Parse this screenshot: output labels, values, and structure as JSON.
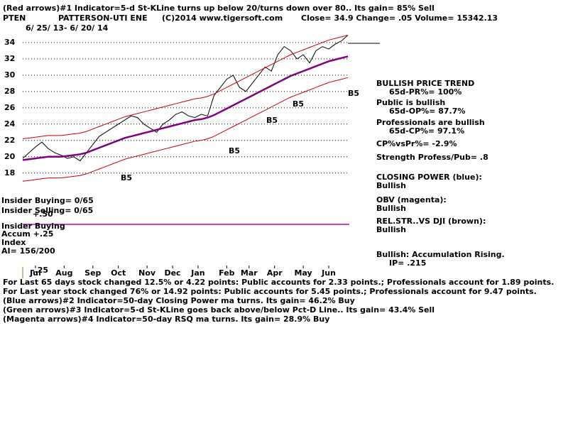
{
  "chart_data": {
    "type": "line",
    "annotations": [
      "(Red arrows)#1 Indicator=5-d St-KLine turns up below 20/turns down over 80.. Its gain= 85% Sell",
      "PTEN",
      "PATTERSON-UTI ENE",
      "(C)2014 www.tigersoft.com",
      "Close=  34.9  Change= .05 Volume= 15342.13",
      "6/ 25/ 13-  6/ 20/ 14",
      "BULLISH PRICE TREND",
      "65d-PR%= 100%",
      "Public is bullish",
      "65d-OP%= 87.7%",
      "Professionals are bullish",
      "65d-CP%= 97.1%",
      "CP%vsPr%= -2.9%",
      "Strength Profess/Pub= .8",
      "CLOSING POWER (blue):",
      "Bullish",
      "OBV (magenta):",
      "Bullish",
      "REL.STR..VS DJI (brown):",
      "Bullish",
      "Bullish: Accumulation Rising.",
      "IP=  .215",
      "Insider Buying= 0/65",
      "Insider Selling= 0/65",
      "Insider Buying",
      "Accum  +.25",
      "Index",
      "AI= 156/200",
      "+.50",
      "-.25",
      "B5",
      "B5",
      "B5",
      "B5",
      "B5",
      "For Last 65 days stock changed  12.5% or  4.22 points:  Public accounts for  2.33 points.;  Professionals account for  1.89 points.",
      "For Last year stock changed  76% or  14.92 points:  Public accounts for  5.45 points.;  Professionals account for  9.47 points.",
      "(Blue arrows)#2 Indicator=50-day Closing Power ma turns. Its gain= 46.2% Buy",
      "(Green arrows)#3 Indicator=5-d St-KLine goes back above/below Pct-D Line.. Its gain= 43.4% Sell",
      "(Magenta arrows)#4 Indicator=50-day RSQ ma turns. Its gain= 28.9% Buy"
    ],
    "x": [
      0,
      1,
      2,
      3,
      4,
      5,
      6,
      7,
      8,
      9,
      10,
      11,
      12,
      13,
      14,
      15,
      16,
      17,
      18,
      19,
      20,
      21,
      22,
      23,
      24,
      25,
      26,
      27,
      28,
      29,
      30,
      31,
      32,
      33,
      34,
      35,
      36,
      37,
      38,
      39,
      40,
      41,
      42,
      43,
      44,
      45,
      46,
      47,
      48,
      49,
      50,
      51
    ],
    "xlim": [
      0,
      51
    ],
    "xticks": [
      {
        "value": 2,
        "label": "Jul"
      },
      {
        "value": 6.5,
        "label": "Aug"
      },
      {
        "value": 11,
        "label": "Sep"
      },
      {
        "value": 15,
        "label": "Oct"
      },
      {
        "value": 19.5,
        "label": "Nov"
      },
      {
        "value": 23.5,
        "label": "Dec"
      },
      {
        "value": 27.5,
        "label": "Jan"
      },
      {
        "value": 32,
        "label": "Feb"
      },
      {
        "value": 35.5,
        "label": "Mar"
      },
      {
        "value": 39.5,
        "label": "Apr"
      },
      {
        "value": 44,
        "label": "May"
      },
      {
        "value": 48,
        "label": "Jun"
      }
    ],
    "ylim": [
      16.5,
      36.6
    ],
    "yticks": [
      18,
      20,
      22,
      24,
      26,
      28,
      30,
      32,
      34
    ],
    "grid": true,
    "series": [
      {
        "name": "Price",
        "color": "#000000",
        "values": [
          19.8,
          20.5,
          21.2,
          21.8,
          21.0,
          20.5,
          20.2,
          19.8,
          20.0,
          19.5,
          20.5,
          21.5,
          22.5,
          23.0,
          23.5,
          24.0,
          24.5,
          25.0,
          24.8,
          24.0,
          23.5,
          23.0,
          24.0,
          24.5,
          25.2,
          25.5,
          25.0,
          24.8,
          25.2,
          25.0,
          27.5,
          28.5,
          29.5,
          30.0,
          28.5,
          28.0,
          29.0,
          30.0,
          31.0,
          30.5,
          32.5,
          33.5,
          33.0,
          32.0,
          32.5,
          31.5,
          33.0,
          33.5,
          33.2,
          33.8,
          34.2,
          34.9
        ]
      },
      {
        "name": "MA",
        "color": "#800080",
        "values": [
          19.6,
          19.7,
          19.8,
          19.9,
          20.0,
          20.0,
          20.0,
          20.1,
          20.2,
          20.3,
          20.5,
          20.8,
          21.1,
          21.4,
          21.7,
          22.0,
          22.3,
          22.5,
          22.7,
          22.9,
          23.1,
          23.3,
          23.5,
          23.7,
          23.9,
          24.1,
          24.3,
          24.5,
          24.6,
          24.8,
          25.1,
          25.5,
          25.9,
          26.3,
          26.7,
          27.1,
          27.5,
          27.9,
          28.3,
          28.7,
          29.1,
          29.5,
          29.9,
          30.2,
          30.5,
          30.8,
          31.1,
          31.4,
          31.7,
          31.9,
          32.1,
          32.3
        ]
      },
      {
        "name": "Upper",
        "color": "#cc0000",
        "values": [
          22.2,
          22.3,
          22.4,
          22.5,
          22.6,
          22.6,
          22.6,
          22.7,
          22.8,
          22.9,
          23.1,
          23.4,
          23.7,
          24.0,
          24.3,
          24.6,
          24.9,
          25.1,
          25.3,
          25.5,
          25.7,
          25.9,
          26.1,
          26.3,
          26.5,
          26.7,
          26.9,
          27.1,
          27.2,
          27.4,
          27.7,
          28.1,
          28.5,
          28.9,
          29.3,
          29.7,
          30.1,
          30.5,
          30.9,
          31.3,
          31.7,
          32.1,
          32.5,
          32.8,
          33.1,
          33.4,
          33.7,
          34.0,
          34.3,
          34.5,
          34.7,
          34.9
        ]
      },
      {
        "name": "Lower",
        "color": "#cc0000",
        "values": [
          17.0,
          17.1,
          17.2,
          17.3,
          17.4,
          17.4,
          17.4,
          17.5,
          17.6,
          17.7,
          17.9,
          18.2,
          18.5,
          18.8,
          19.1,
          19.4,
          19.7,
          19.9,
          20.1,
          20.3,
          20.5,
          20.7,
          20.9,
          21.1,
          21.3,
          21.5,
          21.7,
          21.9,
          22.0,
          22.2,
          22.5,
          22.9,
          23.3,
          23.7,
          24.1,
          24.5,
          24.9,
          25.3,
          25.7,
          26.1,
          26.5,
          26.9,
          27.3,
          27.6,
          27.9,
          28.2,
          28.5,
          28.8,
          29.1,
          29.3,
          29.5,
          29.7
        ]
      }
    ]
  }
}
